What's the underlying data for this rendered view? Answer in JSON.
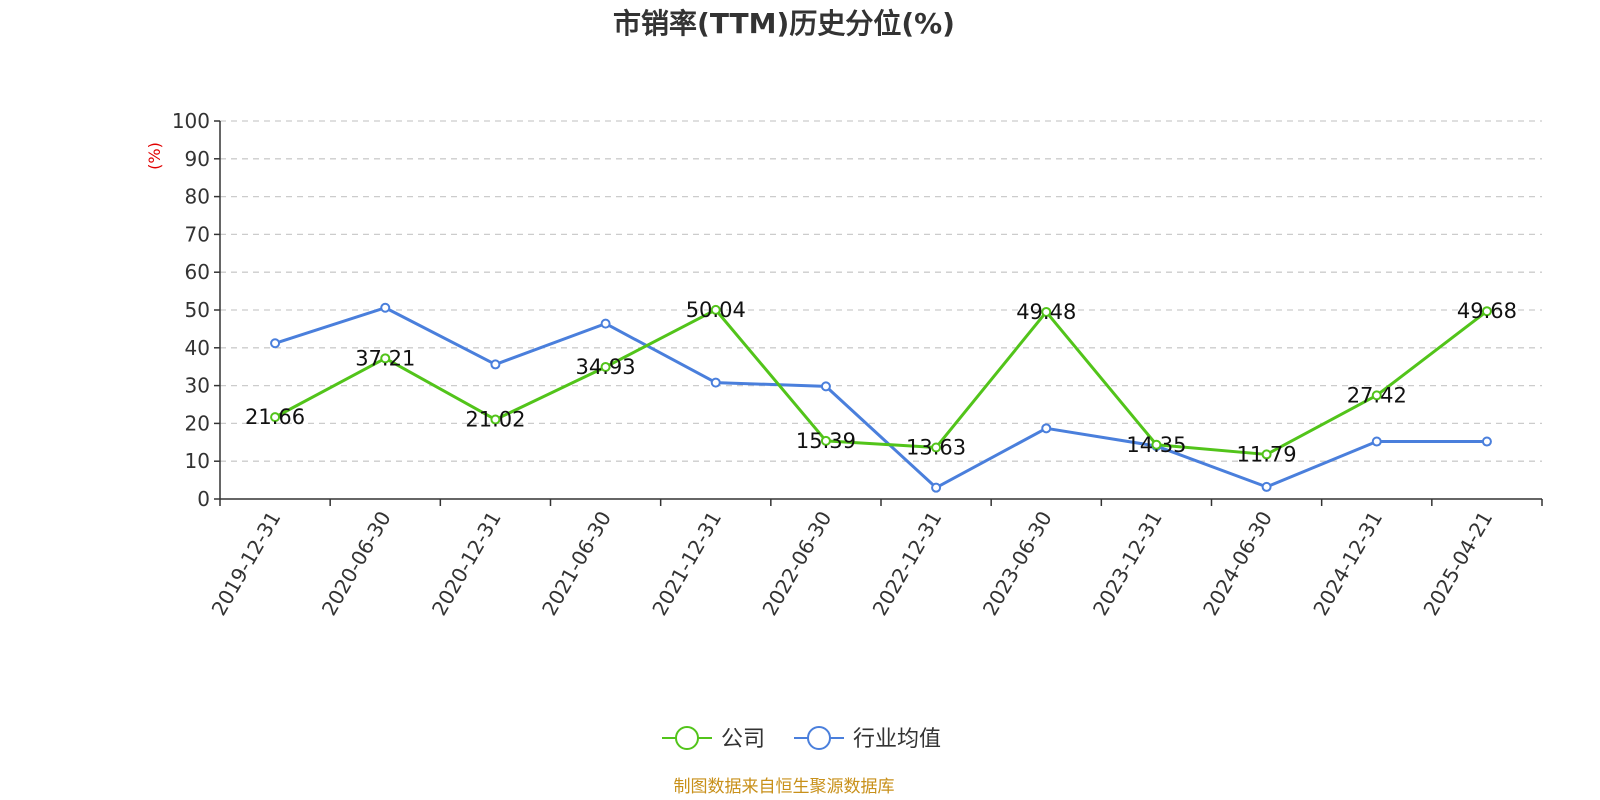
{
  "chart_data": {
    "type": "line",
    "title": "市销率(TTM)历史分位(%)",
    "ylabel": "(%)",
    "xlabel": "",
    "categories": [
      "2019-12-31",
      "2020-06-30",
      "2020-12-31",
      "2021-06-30",
      "2021-12-31",
      "2022-06-30",
      "2022-12-31",
      "2023-06-30",
      "2023-12-31",
      "2024-06-30",
      "2024-12-31",
      "2025-04-21"
    ],
    "ylim": [
      0,
      100
    ],
    "yticks": [
      "0",
      "10",
      "20",
      "30",
      "40",
      "50",
      "60",
      "70",
      "80",
      "90",
      "100"
    ],
    "grid": true,
    "legend_position": "bottom-center",
    "series": [
      {
        "name": "公司",
        "color": "#52c41a",
        "values": [
          21.66,
          37.21,
          21.02,
          34.93,
          50.04,
          15.39,
          13.63,
          49.48,
          14.35,
          11.79,
          27.42,
          49.68
        ],
        "labels": [
          "21.66",
          "37.21",
          "21.02",
          "34.93",
          "50.04",
          "15.39",
          "13.63",
          "49.48",
          "14.35",
          "11.79",
          "27.42",
          "49.68"
        ]
      },
      {
        "name": "行业均值",
        "color": "#4a7fdc",
        "values": [
          41.2,
          50.6,
          35.6,
          46.4,
          30.8,
          29.8,
          3.0,
          18.7,
          14.0,
          3.2,
          15.2,
          15.2
        ]
      }
    ]
  },
  "source": {
    "text": "制图数据来自恒生聚源数据库",
    "color": "#c8901a"
  },
  "ylabel_color": "#e00000"
}
